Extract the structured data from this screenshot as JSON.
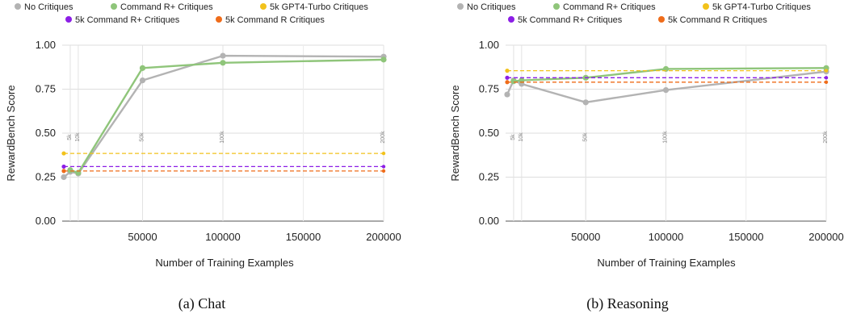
{
  "chart_data": [
    {
      "type": "line",
      "caption": "(a) Chat",
      "xlabel": "Number of Training Examples",
      "ylabel": "RewardBench Score",
      "ylim": [
        0,
        1
      ],
      "yticks": [
        "0.00",
        "0.25",
        "0.50",
        "0.75",
        "1.00"
      ],
      "ytick_values": [
        0,
        0.25,
        0.5,
        0.75,
        1.0
      ],
      "xlim": [
        0,
        200000
      ],
      "xticks": [
        "50000",
        "100000",
        "150000",
        "200000"
      ],
      "xtick_values": [
        50000,
        100000,
        150000,
        200000
      ],
      "grid": true,
      "legend_position": "top",
      "vlines": [
        {
          "x": 5000,
          "label": "5k"
        },
        {
          "x": 10000,
          "label": "10k"
        },
        {
          "x": 50000,
          "label": "50k"
        },
        {
          "x": 100000,
          "label": "100k"
        },
        {
          "x": 200000,
          "label": "200k"
        }
      ],
      "series": [
        {
          "name": "No Critiques",
          "color": "#b3b3b3",
          "style": "solid",
          "x": [
            1000,
            5000,
            10000,
            50000,
            100000,
            200000
          ],
          "y": [
            0.25,
            0.28,
            0.27,
            0.8,
            0.94,
            0.935
          ]
        },
        {
          "name": "Command R+ Critiques",
          "color": "#8fc57a",
          "style": "solid",
          "x": [
            5000,
            10000,
            50000,
            100000,
            200000
          ],
          "y": [
            0.29,
            0.275,
            0.87,
            0.9,
            0.918
          ]
        },
        {
          "name": "5k GPT4-Turbo Critiques",
          "color": "#f2c21b",
          "style": "dashed",
          "x": [
            1000,
            200000
          ],
          "y": [
            0.385,
            0.385
          ]
        },
        {
          "name": "5k Command R+ Critiques",
          "color": "#8c1ee6",
          "style": "dashed",
          "x": [
            1000,
            200000
          ],
          "y": [
            0.31,
            0.31
          ]
        },
        {
          "name": "5k Command R Critiques",
          "color": "#ef6c1a",
          "style": "dashed",
          "x": [
            1000,
            200000
          ],
          "y": [
            0.285,
            0.285
          ]
        }
      ]
    },
    {
      "type": "line",
      "caption": "(b) Reasoning",
      "xlabel": "Number of Training Examples",
      "ylabel": "RewardBench Score",
      "ylim": [
        0,
        1
      ],
      "yticks": [
        "0.00",
        "0.25",
        "0.50",
        "0.75",
        "1.00"
      ],
      "ytick_values": [
        0,
        0.25,
        0.5,
        0.75,
        1.0
      ],
      "xlim": [
        0,
        200000
      ],
      "xticks": [
        "50000",
        "100000",
        "150000",
        "200000"
      ],
      "xtick_values": [
        50000,
        100000,
        150000,
        200000
      ],
      "grid": true,
      "legend_position": "top",
      "vlines": [
        {
          "x": 5000,
          "label": "5k"
        },
        {
          "x": 10000,
          "label": "10k"
        },
        {
          "x": 50000,
          "label": "50k"
        },
        {
          "x": 100000,
          "label": "100k"
        },
        {
          "x": 200000,
          "label": "200k"
        }
      ],
      "series": [
        {
          "name": "No Critiques",
          "color": "#b3b3b3",
          "style": "solid",
          "x": [
            1000,
            5000,
            10000,
            50000,
            100000,
            200000
          ],
          "y": [
            0.72,
            0.8,
            0.78,
            0.675,
            0.745,
            0.85
          ]
        },
        {
          "name": "Command R+ Critiques",
          "color": "#8fc57a",
          "style": "solid",
          "x": [
            5000,
            10000,
            50000,
            100000,
            200000
          ],
          "y": [
            0.795,
            0.8,
            0.815,
            0.865,
            0.87
          ]
        },
        {
          "name": "5k GPT4-Turbo Critiques",
          "color": "#f2c21b",
          "style": "dashed",
          "x": [
            1000,
            200000
          ],
          "y": [
            0.855,
            0.855
          ]
        },
        {
          "name": "5k Command R+ Critiques",
          "color": "#8c1ee6",
          "style": "dashed",
          "x": [
            1000,
            200000
          ],
          "y": [
            0.815,
            0.815
          ]
        },
        {
          "name": "5k Command R Critiques",
          "color": "#ef6c1a",
          "style": "dashed",
          "x": [
            1000,
            200000
          ],
          "y": [
            0.79,
            0.79
          ]
        }
      ]
    }
  ]
}
